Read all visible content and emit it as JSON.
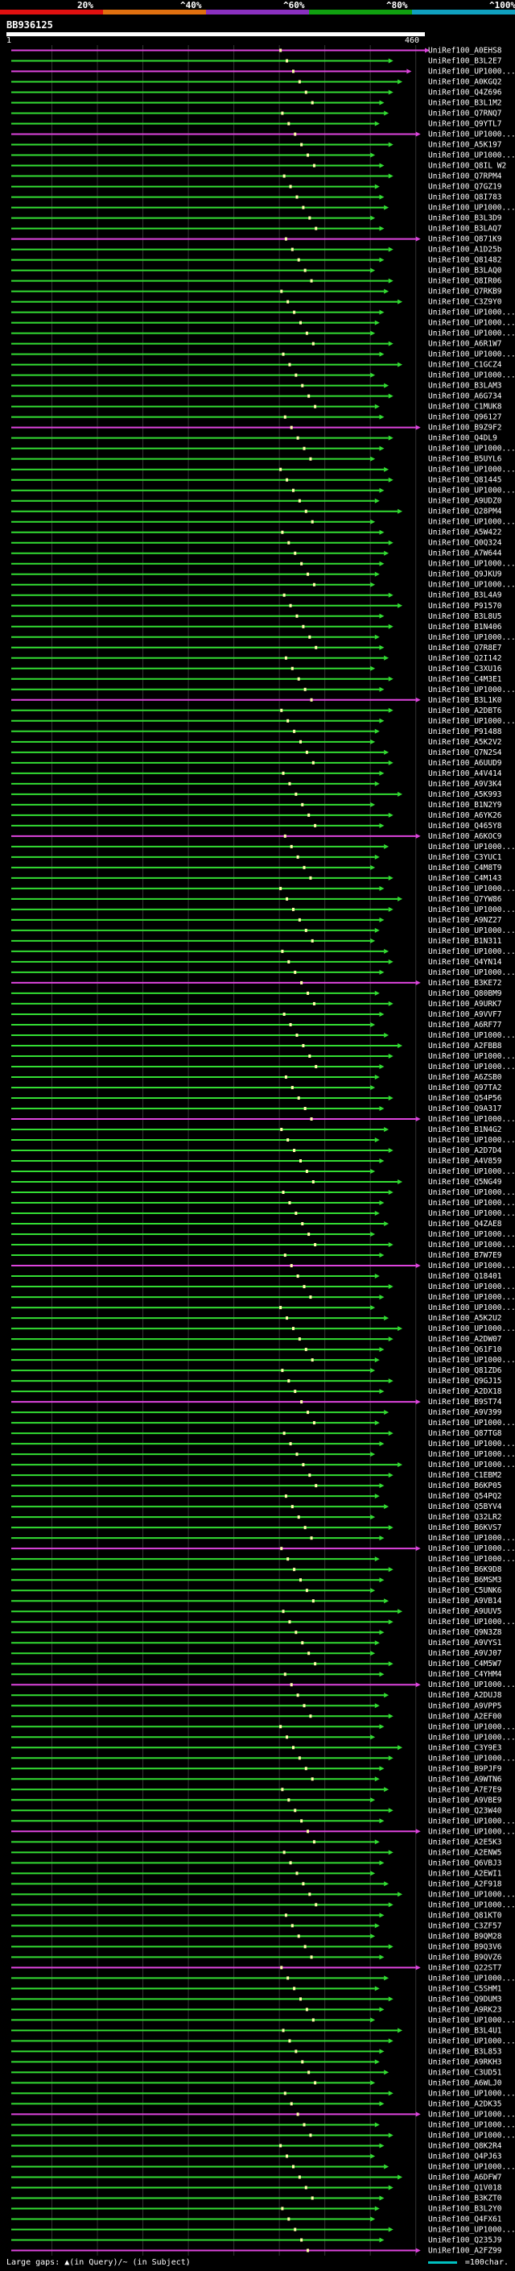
{
  "header": {
    "query_id": "BB936125",
    "start": "1",
    "end": "460",
    "scale_labels": [
      "20%",
      "^40%",
      "^60%",
      "^80%",
      "^100%"
    ],
    "scale_colors": [
      "#e01010",
      "#e07010",
      "#8a30c0",
      "#10a010",
      "#10a0c0"
    ]
  },
  "legend": {
    "text": "Large gaps: ▲(in Query)/~ (in Subject)",
    "scale_text": "=100char."
  },
  "colors": {
    "high": "#33dd33",
    "mid": "#dd44dd",
    "grid": "#333333",
    "marker": "#ffffaa"
  },
  "chart_data": {
    "type": "alignment-map",
    "query_length": 460,
    "hits": [
      {
        "id": "UniRef100_A0EHS8",
        "end": 460
      },
      {
        "id": "UniRef100_B3L2E7",
        "end": 420
      },
      {
        "id": "UniRef100_UP1000...",
        "end": 440
      },
      {
        "id": "UniRef100_A0KGQ2",
        "end": 430
      },
      {
        "id": "UniRef100_Q4Z696",
        "end": 420
      },
      {
        "id": "UniRef100_B3L1M2",
        "end": 410
      },
      {
        "id": "UniRef100_Q7RNQ7",
        "end": 415
      },
      {
        "id": "UniRef100_Q9YTL7",
        "end": 405
      },
      {
        "id": "UniRef100_UP1000...",
        "end": 450
      },
      {
        "id": "UniRef100_A5K197",
        "end": 420
      },
      {
        "id": "UniRef100_UP1000...",
        "end": 400
      },
      {
        "id": "UniRef100_Q8IL W2",
        "end": 410
      },
      {
        "id": "UniRef100_Q7RPM4",
        "end": 420
      },
      {
        "id": "UniRef100_Q7GZ19",
        "end": 405
      },
      {
        "id": "UniRef100_Q8I783",
        "end": 410
      },
      {
        "id": "UniRef100_UP1000...",
        "end": 415
      },
      {
        "id": "UniRef100_B3L3D9",
        "end": 400
      },
      {
        "id": "UniRef100_B3LAQ7",
        "end": 410
      },
      {
        "id": "UniRef100_Q871K9",
        "end": 450
      },
      {
        "id": "UniRef100_A1D25b",
        "end": 420
      },
      {
        "id": "UniRef100_Q81482",
        "end": 410
      },
      {
        "id": "UniRef100_B3LAQ0",
        "end": 400
      },
      {
        "id": "UniRef100_Q8IR06",
        "end": 420
      },
      {
        "id": "UniRef100_Q7RKB9",
        "end": 415
      },
      {
        "id": "UniRef100_C3Z9Y0",
        "end": 430
      },
      {
        "id": "UniRef100_UP1000...",
        "end": 410
      },
      {
        "id": "UniRef100_UP1000...",
        "end": 405
      },
      {
        "id": "UniRef100_UP1000...",
        "end": 400
      },
      {
        "id": "UniRef100_A6R1W7",
        "end": 420
      },
      {
        "id": "UniRef100_UP1000...",
        "end": 410
      },
      {
        "id": "UniRef100_C1GCZ4",
        "end": 430
      },
      {
        "id": "UniRef100_UP1000...",
        "end": 400
      },
      {
        "id": "UniRef100_B3LAM3",
        "end": 415
      },
      {
        "id": "UniRef100_A6G734",
        "end": 420
      },
      {
        "id": "UniRef100_C1MUK8",
        "end": 405
      },
      {
        "id": "UniRef100_Q96127",
        "end": 410
      },
      {
        "id": "UniRef100_B9Z9F2",
        "end": 450
      },
      {
        "id": "UniRef100_Q4DL9",
        "end": 420
      },
      {
        "id": "UniRef100_UP1000...",
        "end": 410
      },
      {
        "id": "UniRef100_B5UYL6",
        "end": 400
      },
      {
        "id": "UniRef100_UP1000...",
        "end": 415
      },
      {
        "id": "UniRef100_Q81445",
        "end": 420
      },
      {
        "id": "UniRef100_UP1000...",
        "end": 410
      },
      {
        "id": "UniRef100_A9UDZ0",
        "end": 405
      },
      {
        "id": "UniRef100_Q28PM4",
        "end": 430
      },
      {
        "id": "UniRef100_UP1000...",
        "end": 400
      },
      {
        "id": "UniRef100_A5W422",
        "end": 410
      },
      {
        "id": "UniRef100_Q0Q324",
        "end": 420
      },
      {
        "id": "UniRef100_A7W644",
        "end": 415
      },
      {
        "id": "UniRef100_UP1000...",
        "end": 410
      },
      {
        "id": "UniRef100_Q9JKU9",
        "end": 405
      },
      {
        "id": "UniRef100_UP1000...",
        "end": 400
      },
      {
        "id": "UniRef100_B3L4A9",
        "end": 420
      },
      {
        "id": "UniRef100_P91570",
        "end": 430
      },
      {
        "id": "UniRef100_B3L8U5",
        "end": 410
      },
      {
        "id": "UniRef100_B1N406",
        "end": 420
      },
      {
        "id": "UniRef100_UP1000...",
        "end": 405
      },
      {
        "id": "UniRef100_Q7R8E7",
        "end": 410
      },
      {
        "id": "UniRef100_Q2I142",
        "end": 415
      },
      {
        "id": "UniRef100_C3XU16",
        "end": 400
      },
      {
        "id": "UniRef100_C4M3E1",
        "end": 420
      },
      {
        "id": "UniRef100_UP1000...",
        "end": 410
      },
      {
        "id": "UniRef100_B3L1K0",
        "end": 450
      },
      {
        "id": "UniRef100_A2DBT6",
        "end": 420
      },
      {
        "id": "UniRef100_UP1000...",
        "end": 410
      },
      {
        "id": "UniRef100_P91488",
        "end": 405
      },
      {
        "id": "UniRef100_A5K2V2",
        "end": 400
      },
      {
        "id": "UniRef100_Q7N2S4",
        "end": 415
      },
      {
        "id": "UniRef100_A6UUD9",
        "end": 420
      },
      {
        "id": "UniRef100_A4V414",
        "end": 410
      },
      {
        "id": "UniRef100_A9V3K4",
        "end": 405
      },
      {
        "id": "UniRef100_A5K993",
        "end": 430
      },
      {
        "id": "UniRef100_B1N2Y9",
        "end": 400
      },
      {
        "id": "UniRef100_A6YK26",
        "end": 420
      },
      {
        "id": "UniRef100_Q465Y8",
        "end": 410
      },
      {
        "id": "UniRef100_A6KOC9",
        "end": 450
      },
      {
        "id": "UniRef100_UP1000...",
        "end": 415
      },
      {
        "id": "UniRef100_C3YUC1",
        "end": 405
      },
      {
        "id": "UniRef100_C4M8T9",
        "end": 400
      },
      {
        "id": "UniRef100_C4M143",
        "end": 420
      },
      {
        "id": "UniRef100_UP1000...",
        "end": 410
      },
      {
        "id": "UniRef100_Q7YW86",
        "end": 430
      },
      {
        "id": "UniRef100_UP1000...",
        "end": 420
      },
      {
        "id": "UniRef100_A9NZ27",
        "end": 410
      },
      {
        "id": "UniRef100_UP1000...",
        "end": 405
      },
      {
        "id": "UniRef100_B1N311",
        "end": 400
      },
      {
        "id": "UniRef100_UP1000...",
        "end": 415
      },
      {
        "id": "UniRef100_Q4YN14",
        "end": 420
      },
      {
        "id": "UniRef100_UP1000...",
        "end": 410
      },
      {
        "id": "UniRef100_B3KE72",
        "end": 450
      },
      {
        "id": "UniRef100_Q80BM9",
        "end": 405
      },
      {
        "id": "UniRef100_A9URK7",
        "end": 420
      },
      {
        "id": "UniRef100_A9VVF7",
        "end": 410
      },
      {
        "id": "UniRef100_A6RF77",
        "end": 400
      },
      {
        "id": "UniRef100_UP1000...",
        "end": 415
      },
      {
        "id": "UniRef100_A2FBB8",
        "end": 430
      },
      {
        "id": "UniRef100_UP1000...",
        "end": 420
      },
      {
        "id": "UniRef100_UP1000...",
        "end": 410
      },
      {
        "id": "UniRef100_A6ZSB0",
        "end": 405
      },
      {
        "id": "UniRef100_Q97TA2",
        "end": 400
      },
      {
        "id": "UniRef100_Q54P56",
        "end": 420
      },
      {
        "id": "UniRef100_Q9A317",
        "end": 410
      },
      {
        "id": "UniRef100_UP1000...",
        "end": 450
      },
      {
        "id": "UniRef100_B1N4G2",
        "end": 415
      },
      {
        "id": "UniRef100_UP1000...",
        "end": 405
      },
      {
        "id": "UniRef100_A2D7D4",
        "end": 420
      },
      {
        "id": "UniRef100_A4V859",
        "end": 410
      },
      {
        "id": "UniRef100_UP1000...",
        "end": 400
      },
      {
        "id": "UniRef100_Q5NG49",
        "end": 430
      },
      {
        "id": "UniRef100_UP1000...",
        "end": 420
      },
      {
        "id": "UniRef100_UP1000...",
        "end": 410
      },
      {
        "id": "UniRef100_UP1000...",
        "end": 405
      },
      {
        "id": "UniRef100_Q4ZAE8",
        "end": 415
      },
      {
        "id": "UniRef100_UP1000...",
        "end": 400
      },
      {
        "id": "UniRef100_UP1000...",
        "end": 420
      },
      {
        "id": "UniRef100_B7W7E9",
        "end": 410
      },
      {
        "id": "UniRef100_UP1000...",
        "end": 450
      },
      {
        "id": "UniRef100_Q18401",
        "end": 405
      },
      {
        "id": "UniRef100_UP1000...",
        "end": 420
      },
      {
        "id": "UniRef100_UP1000...",
        "end": 410
      },
      {
        "id": "UniRef100_UP1000...",
        "end": 400
      },
      {
        "id": "UniRef100_A5K2U2",
        "end": 415
      },
      {
        "id": "UniRef100_UP1000...",
        "end": 430
      },
      {
        "id": "UniRef100_A2DW07",
        "end": 420
      },
      {
        "id": "UniRef100_Q61F10",
        "end": 410
      },
      {
        "id": "UniRef100_UP1000...",
        "end": 405
      },
      {
        "id": "UniRef100_Q81ZD6",
        "end": 400
      },
      {
        "id": "UniRef100_Q9GJ15",
        "end": 420
      },
      {
        "id": "UniRef100_A2DX18",
        "end": 410
      },
      {
        "id": "UniRef100_B9ST74",
        "end": 450
      },
      {
        "id": "UniRef100_A9V399",
        "end": 415
      },
      {
        "id": "UniRef100_UP1000...",
        "end": 405
      },
      {
        "id": "UniRef100_Q87TG8",
        "end": 420
      },
      {
        "id": "UniRef100_UP1000...",
        "end": 410
      },
      {
        "id": "UniRef100_UP1000...",
        "end": 400
      },
      {
        "id": "UniRef100_UP1000...",
        "end": 430
      },
      {
        "id": "UniRef100_C1EBM2",
        "end": 420
      },
      {
        "id": "UniRef100_B6KP05",
        "end": 410
      },
      {
        "id": "UniRef100_Q54PQ2",
        "end": 405
      },
      {
        "id": "UniRef100_Q5BYV4",
        "end": 415
      },
      {
        "id": "UniRef100_Q32LR2",
        "end": 400
      },
      {
        "id": "UniRef100_B6KVS7",
        "end": 420
      },
      {
        "id": "UniRef100_UP1000...",
        "end": 410
      },
      {
        "id": "UniRef100_UP1000...",
        "end": 450
      },
      {
        "id": "UniRef100_UP1000...",
        "end": 405
      },
      {
        "id": "UniRef100_B6K9D8",
        "end": 420
      },
      {
        "id": "UniRef100_B6MSM3",
        "end": 410
      },
      {
        "id": "UniRef100_C5UNK6",
        "end": 400
      },
      {
        "id": "UniRef100_A9VB14",
        "end": 415
      },
      {
        "id": "UniRef100_A9UUV5",
        "end": 430
      },
      {
        "id": "UniRef100_UP1000...",
        "end": 420
      },
      {
        "id": "UniRef100_Q9N3Z8",
        "end": 410
      },
      {
        "id": "UniRef100_A9VYS1",
        "end": 405
      },
      {
        "id": "UniRef100_A9VJ07",
        "end": 400
      },
      {
        "id": "UniRef100_C4M5W7",
        "end": 420
      },
      {
        "id": "UniRef100_C4YHM4",
        "end": 410
      },
      {
        "id": "UniRef100_UP1000...",
        "end": 450
      },
      {
        "id": "UniRef100_A2DUJ8",
        "end": 415
      },
      {
        "id": "UniRef100_A9VPP5",
        "end": 405
      },
      {
        "id": "UniRef100_A2EF00",
        "end": 420
      },
      {
        "id": "UniRef100_UP1000...",
        "end": 410
      },
      {
        "id": "UniRef100_UP1000...",
        "end": 400
      },
      {
        "id": "UniRef100_C3Y9E3",
        "end": 430
      },
      {
        "id": "UniRef100_UP1000...",
        "end": 420
      },
      {
        "id": "UniRef100_B9PJF9",
        "end": 410
      },
      {
        "id": "UniRef100_A9WTN6",
        "end": 405
      },
      {
        "id": "UniRef100_A7E7E9",
        "end": 415
      },
      {
        "id": "UniRef100_A9VBE9",
        "end": 400
      },
      {
        "id": "UniRef100_Q23W40",
        "end": 420
      },
      {
        "id": "UniRef100_UP1000...",
        "end": 410
      },
      {
        "id": "UniRef100_UP1000...",
        "end": 450
      },
      {
        "id": "UniRef100_A2E5K3",
        "end": 405
      },
      {
        "id": "UniRef100_A2ENW5",
        "end": 420
      },
      {
        "id": "UniRef100_Q6VBJ3",
        "end": 410
      },
      {
        "id": "UniRef100_A2EWI1",
        "end": 400
      },
      {
        "id": "UniRef100_A2F918",
        "end": 415
      },
      {
        "id": "UniRef100_UP1000...",
        "end": 430
      },
      {
        "id": "UniRef100_UP1000...",
        "end": 420
      },
      {
        "id": "UniRef100_Q81KT0",
        "end": 410
      },
      {
        "id": "UniRef100_C3ZF57",
        "end": 405
      },
      {
        "id": "UniRef100_B9QM28",
        "end": 400
      },
      {
        "id": "UniRef100_B9Q3V6",
        "end": 420
      },
      {
        "id": "UniRef100_B9QVZ6",
        "end": 410
      },
      {
        "id": "UniRef100_Q22ST7",
        "end": 450
      },
      {
        "id": "UniRef100_UP1000...",
        "end": 415
      },
      {
        "id": "UniRef100_C5SHM1",
        "end": 405
      },
      {
        "id": "UniRef100_Q9DUM3",
        "end": 420
      },
      {
        "id": "UniRef100_A9RK23",
        "end": 410
      },
      {
        "id": "UniRef100_UP1000...",
        "end": 400
      },
      {
        "id": "UniRef100_B3L4U1",
        "end": 430
      },
      {
        "id": "UniRef100_UP1000...",
        "end": 420
      },
      {
        "id": "UniRef100_B3L853",
        "end": 410
      },
      {
        "id": "UniRef100_A9RKH3",
        "end": 405
      },
      {
        "id": "UniRef100_C3UD51",
        "end": 415
      },
      {
        "id": "UniRef100_A6WLJ0",
        "end": 400
      },
      {
        "id": "UniRef100_UP1000...",
        "end": 420
      },
      {
        "id": "UniRef100_A2DK35",
        "end": 410
      },
      {
        "id": "UniRef100_UP1000...",
        "end": 450
      },
      {
        "id": "UniRef100_UP1000...",
        "end": 405
      },
      {
        "id": "UniRef100_UP1000...",
        "end": 420
      },
      {
        "id": "UniRef100_Q8K2R4",
        "end": 410
      },
      {
        "id": "UniRef100_Q4PJ63",
        "end": 400
      },
      {
        "id": "UniRef100_UP1000...",
        "end": 415
      },
      {
        "id": "UniRef100_A6DFW7",
        "end": 430
      },
      {
        "id": "UniRef100_Q1V018",
        "end": 420
      },
      {
        "id": "UniRef100_B3KZT0",
        "end": 410
      },
      {
        "id": "UniRef100_B3L2Y0",
        "end": 405
      },
      {
        "id": "UniRef100_Q4FX61",
        "end": 400
      },
      {
        "id": "UniRef100_UP1000...",
        "end": 420
      },
      {
        "id": "UniRef100_Q235J9",
        "end": 410
      },
      {
        "id": "UniRef100_A2FZ99",
        "end": 450
      }
    ]
  }
}
